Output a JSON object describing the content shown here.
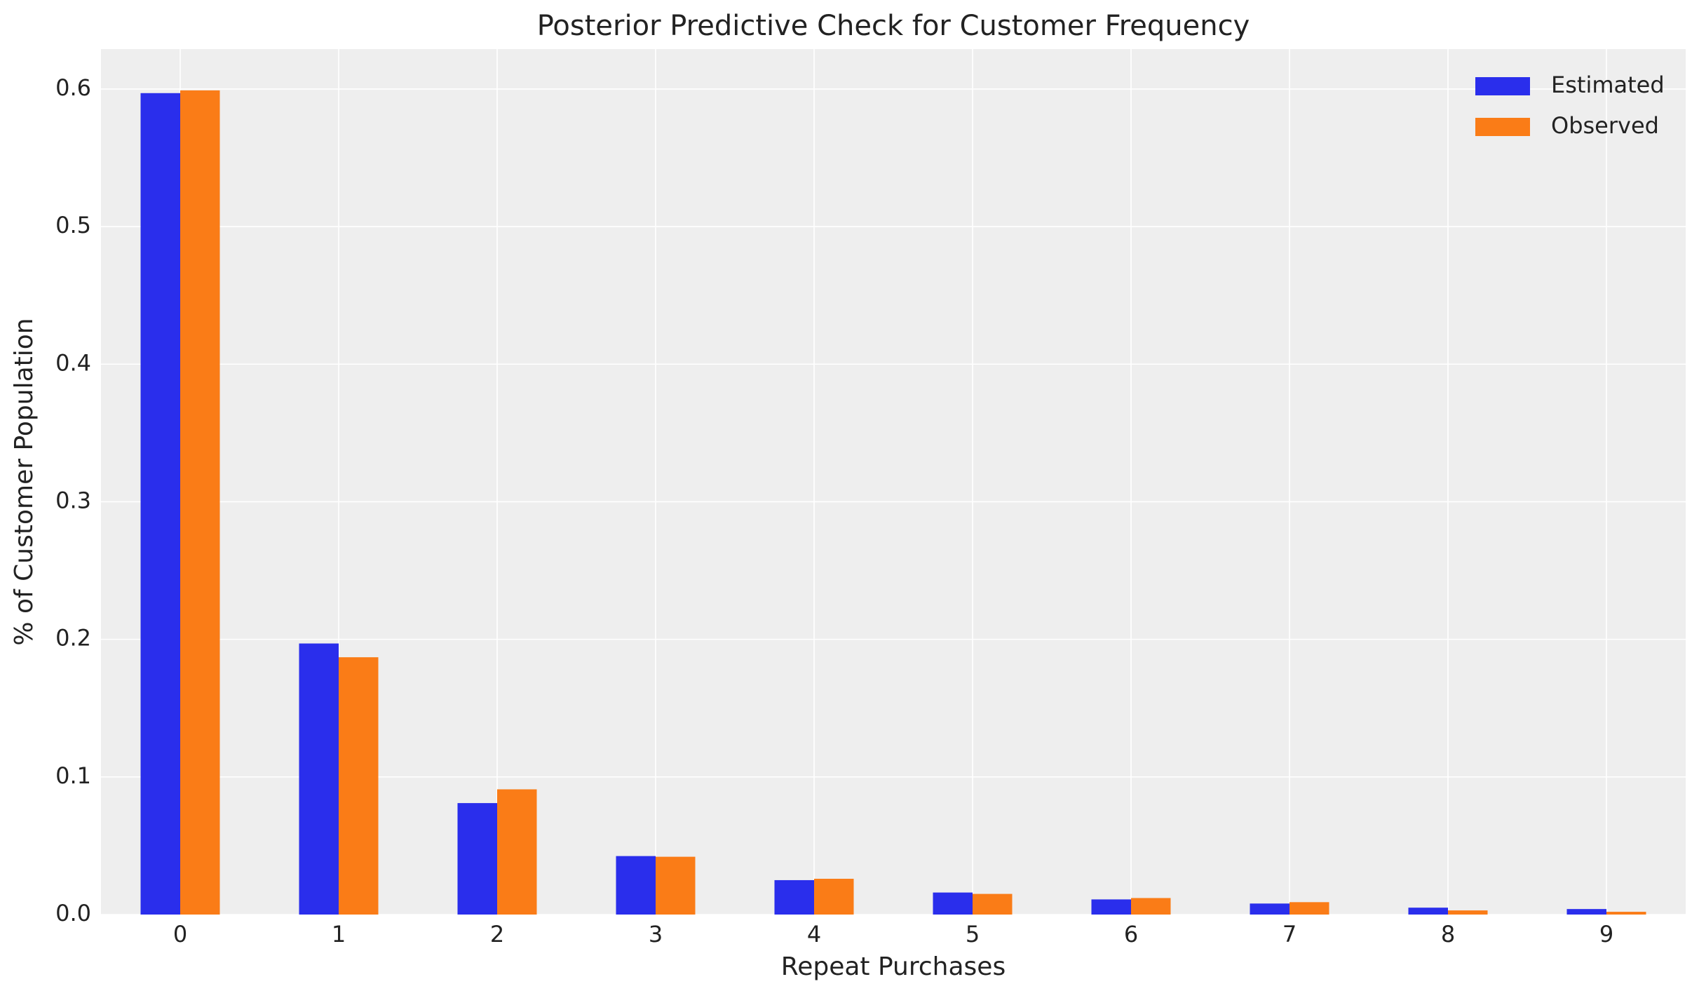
{
  "chart_data": {
    "type": "bar",
    "title": "Posterior Predictive Check for Customer Frequency",
    "x_label": "Repeat Purchases",
    "y_label": "% of Customer Population",
    "categories": [
      "0",
      "1",
      "2",
      "3",
      "4",
      "5",
      "6",
      "7",
      "8",
      "9"
    ],
    "series": [
      {
        "name": "Estimated",
        "color": "#2a2eec",
        "values": [
          0.597,
          0.197,
          0.081,
          0.0425,
          0.025,
          0.016,
          0.011,
          0.008,
          0.005,
          0.004
        ]
      },
      {
        "name": "Observed",
        "color": "#fa7c17",
        "values": [
          0.599,
          0.187,
          0.091,
          0.042,
          0.026,
          0.015,
          0.012,
          0.009,
          0.003,
          0.002
        ]
      }
    ],
    "ylim": [
      0,
      0.629
    ],
    "yticks": [
      {
        "value": 0,
        "label": "0.0"
      },
      0.1,
      0.2,
      0.3,
      0.4,
      0.5,
      0.6
    ],
    "grid": true,
    "legend": "upper right"
  }
}
